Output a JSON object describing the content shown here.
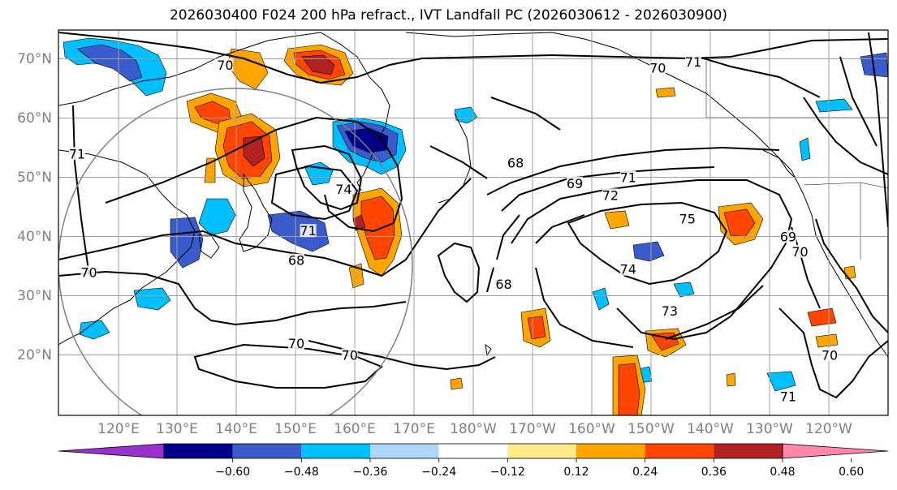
{
  "title": "2026030400 F024 200 hPa refract., IVT Landfall PC (2026030612 - 2026030900)",
  "axes": {
    "lat_labels": [
      "70°N",
      "60°N",
      "50°N",
      "40°N",
      "30°N",
      "20°N"
    ],
    "lon_labels": [
      "120°E",
      "130°E",
      "140°E",
      "150°E",
      "160°E",
      "170°E",
      "180°W",
      "170°W",
      "160°W",
      "150°W",
      "140°W",
      "130°W",
      "120°W"
    ]
  },
  "contour_labels": [
    {
      "text": "70",
      "lon": 138,
      "lat": 69
    },
    {
      "text": "70",
      "lon": -149,
      "lat": 68.5
    },
    {
      "text": "71",
      "lon": -143,
      "lat": 69.5
    },
    {
      "text": "71",
      "lon": 113,
      "lat": 54
    },
    {
      "text": "68",
      "lon": -173,
      "lat": 52.5
    },
    {
      "text": "69",
      "lon": -163,
      "lat": 49
    },
    {
      "text": "71",
      "lon": -154,
      "lat": 50
    },
    {
      "text": "72",
      "lon": -157,
      "lat": 47
    },
    {
      "text": "74",
      "lon": 158,
      "lat": 48
    },
    {
      "text": "71",
      "lon": 152,
      "lat": 41
    },
    {
      "text": "68",
      "lon": 150,
      "lat": 36
    },
    {
      "text": "70",
      "lon": 115,
      "lat": 34
    },
    {
      "text": "68",
      "lon": -175,
      "lat": 32
    },
    {
      "text": "74",
      "lon": -154,
      "lat": 34.5
    },
    {
      "text": "75",
      "lon": -144,
      "lat": 43
    },
    {
      "text": "73",
      "lon": -147,
      "lat": 27.5
    },
    {
      "text": "70",
      "lon": 150,
      "lat": 22
    },
    {
      "text": "70",
      "lon": 159,
      "lat": 20
    },
    {
      "text": "71",
      "lon": -127,
      "lat": 13
    },
    {
      "text": "70",
      "lon": -120,
      "lat": 20
    },
    {
      "text": "69",
      "lon": -127,
      "lat": 40
    },
    {
      "text": "70",
      "lon": -125,
      "lat": 37.5
    }
  ],
  "colorbar": {
    "levels": [
      "−0.60",
      "−0.48",
      "−0.36",
      "−0.24",
      "−0.12",
      "0.12",
      "0.24",
      "0.36",
      "0.48",
      "0.60"
    ],
    "colors": [
      "#9932cc",
      "#00008b",
      "#3a5bcc",
      "#00bfff",
      "#add8f7",
      "#ffffff",
      "#ffeb8a",
      "#ffa500",
      "#ff4500",
      "#b22222",
      "#ff88aa"
    ]
  }
}
